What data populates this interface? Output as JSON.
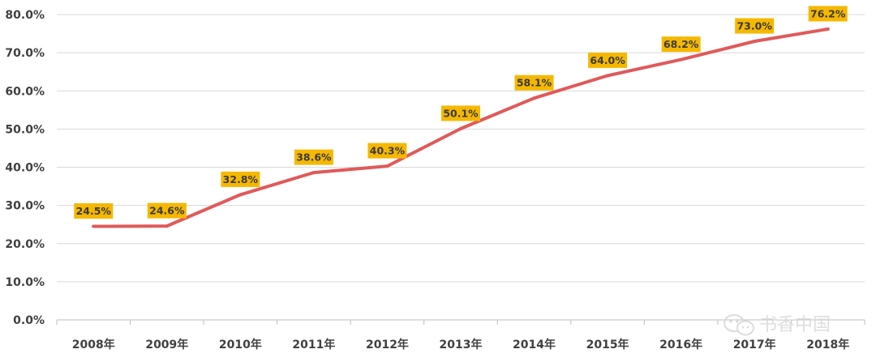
{
  "chart_data": {
    "type": "line",
    "categories": [
      "2008年",
      "2009年",
      "2010年",
      "2011年",
      "2012年",
      "2013年",
      "2014年",
      "2015年",
      "2016年",
      "2017年",
      "2018年"
    ],
    "series": [
      {
        "values": [
          24.5,
          24.6,
          32.8,
          38.6,
          40.3,
          50.1,
          58.1,
          64.0,
          68.2,
          73.0,
          76.2
        ]
      }
    ],
    "data_labels": [
      "24.5%",
      "24.6%",
      "32.8%",
      "38.6%",
      "40.3%",
      "50.1%",
      "58.1%",
      "64.0%",
      "68.2%",
      "73.0%",
      "76.2%"
    ],
    "yticks": [
      "0.0%",
      "10.0%",
      "20.0%",
      "30.0%",
      "40.0%",
      "50.0%",
      "60.0%",
      "70.0%",
      "80.0%"
    ],
    "ylim": [
      0,
      80
    ],
    "y_step": 10,
    "grid": true,
    "line_color": "#e05a5a",
    "label_bg_color": "#f5b800",
    "title": "",
    "xlabel": "",
    "ylabel": ""
  },
  "watermark": {
    "text": "书香中国",
    "icon": "wechat-icon"
  }
}
